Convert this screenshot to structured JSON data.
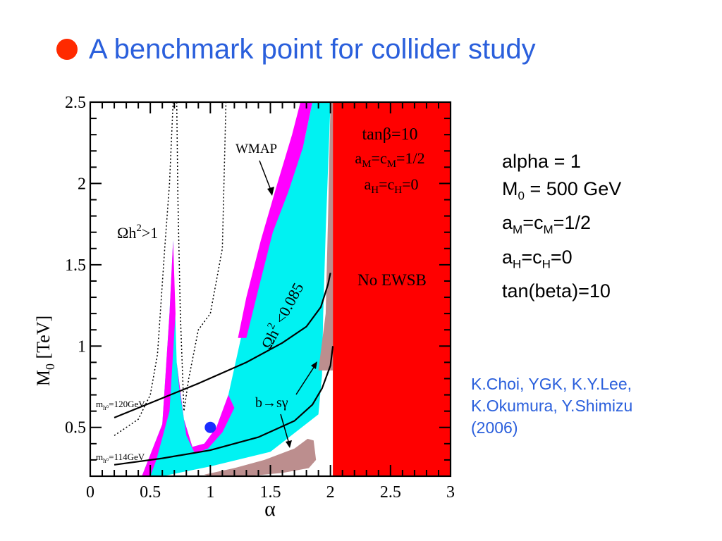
{
  "title": "A benchmark point for collider study",
  "colors": {
    "title": "#2a5fdc",
    "bullet": "#ff2a00",
    "cyan": "#00f2f2",
    "magenta": "#ff00ff",
    "red": "#ff0000",
    "brown": "#bc8e8e",
    "benchmark_point": "#1a2cff"
  },
  "params": {
    "line1": "alpha = 1",
    "line2_prefix": "M",
    "line2_sub": "0",
    "line2_rest": " = 500 GeV",
    "line3_a": "a",
    "line3_a_sub": "M",
    "line3_eq": "=c",
    "line3_c_sub": "M",
    "line3_rest": "=1/2",
    "line4_a": "a",
    "line4_a_sub": "H",
    "line4_eq": "=c",
    "line4_c_sub": "H",
    "line4_rest": "=0",
    "line5": "tan(beta)=10"
  },
  "reference": {
    "line1": "K.Choi, YGK, K.Y.Lee,",
    "line2": "K.Okumura, Y.Shimizu",
    "line3": "(2006)"
  },
  "chart_data": {
    "type": "scatter",
    "xlabel": "α",
    "ylabel": "M",
    "ylabel_sub": "0",
    "ylabel_rest": " [TeV]",
    "xlim": [
      0,
      3
    ],
    "ylim": [
      0.2,
      2.5
    ],
    "x_ticks": [
      0,
      0.5,
      1,
      1.5,
      2,
      2.5,
      3
    ],
    "x_tick_labels": [
      "0",
      "0.5",
      "1",
      "1.5",
      "2",
      "2.5",
      "3"
    ],
    "y_ticks": [
      0.5,
      1,
      1.5,
      2,
      2.5
    ],
    "y_tick_labels": [
      "0.5",
      "1",
      "1.5",
      "2",
      "2.5"
    ],
    "benchmark": {
      "x": 1,
      "y": 0.5
    },
    "annotations": {
      "tanb_a": "tanβ=10",
      "am_a": "a",
      "am_sub": "M",
      "am_eq": "=c",
      "cm_sub": "M",
      "am_rest": "=1/2",
      "ah_a": "a",
      "ah_sub": "H",
      "ah_eq": "=c",
      "ch_sub": "H",
      "ah_rest": "=0",
      "wmap": "WMAP",
      "omega_gt1": "Ωh",
      "omega_gt1_sup": "2",
      "omega_gt1_rest": ">1",
      "omega_lt": "Ωh",
      "omega_lt_sup": "2",
      "omega_lt_rest": " <0.085",
      "no_ewsb": "No EWSB",
      "bsg": "b→sγ",
      "mh120_a": "m",
      "mh120_sub": "h⁰",
      "mh120_rest": "=120GeV",
      "mh114_a": "m",
      "mh114_sub": "h⁰",
      "mh114_rest": "=114GeV"
    },
    "regions": {
      "no_ewsb": [
        [
          2.02,
          0.2
        ],
        [
          3,
          0.2
        ],
        [
          3,
          2.5
        ],
        [
          2.02,
          2.5
        ]
      ],
      "brown_band": [
        [
          1.9,
          0.85
        ],
        [
          1.96,
          1.2
        ],
        [
          1.98,
          1.8
        ],
        [
          2.0,
          2.5
        ],
        [
          2.02,
          2.5
        ],
        [
          2.02,
          0.85
        ]
      ],
      "brown_low": [
        [
          0.95,
          0.21
        ],
        [
          1.2,
          0.25
        ],
        [
          1.45,
          0.3
        ],
        [
          1.7,
          0.37
        ],
        [
          1.81,
          0.43
        ],
        [
          1.86,
          0.42
        ],
        [
          1.88,
          0.3
        ],
        [
          1.82,
          0.25
        ],
        [
          1.6,
          0.22
        ],
        [
          1.3,
          0.2
        ],
        [
          1.0,
          0.2
        ]
      ],
      "cyan": [
        [
          0.43,
          0.2
        ],
        [
          0.6,
          0.52
        ],
        [
          0.66,
          1.2
        ],
        [
          0.69,
          1.65
        ],
        [
          0.72,
          0.9
        ],
        [
          0.78,
          0.55
        ],
        [
          0.85,
          0.38
        ],
        [
          0.95,
          0.4
        ],
        [
          1.05,
          0.5
        ],
        [
          1.15,
          0.7
        ],
        [
          1.3,
          1.2
        ],
        [
          1.45,
          1.72
        ],
        [
          1.6,
          1.95
        ],
        [
          1.75,
          2.2
        ],
        [
          1.9,
          2.5
        ],
        [
          2.0,
          2.5
        ],
        [
          1.96,
          1.7
        ],
        [
          1.94,
          1.2
        ],
        [
          1.93,
          0.82
        ],
        [
          1.9,
          0.58
        ],
        [
          1.5,
          0.35
        ],
        [
          1.0,
          0.26
        ],
        [
          0.6,
          0.2
        ]
      ],
      "magenta_left": [
        [
          0.43,
          0.2
        ],
        [
          0.6,
          0.52
        ],
        [
          0.66,
          1.2
        ],
        [
          0.69,
          1.65
        ],
        [
          0.71,
          1.2
        ],
        [
          0.66,
          0.6
        ],
        [
          0.55,
          0.3
        ],
        [
          0.5,
          0.2
        ]
      ],
      "magenta_valley": [
        [
          0.72,
          0.9
        ],
        [
          0.78,
          0.55
        ],
        [
          0.85,
          0.38
        ],
        [
          0.95,
          0.4
        ],
        [
          1.05,
          0.5
        ],
        [
          1.15,
          0.7
        ],
        [
          1.2,
          0.62
        ],
        [
          1.1,
          0.47
        ],
        [
          0.98,
          0.37
        ],
        [
          0.87,
          0.34
        ],
        [
          0.8,
          0.45
        ],
        [
          0.74,
          0.75
        ]
      ],
      "magenta_upper": [
        [
          1.23,
          1.05
        ],
        [
          1.3,
          1.3
        ],
        [
          1.42,
          1.65
        ],
        [
          1.55,
          1.98
        ],
        [
          1.68,
          2.3
        ],
        [
          1.75,
          2.5
        ],
        [
          1.85,
          2.5
        ],
        [
          1.77,
          2.22
        ],
        [
          1.65,
          1.95
        ],
        [
          1.52,
          1.7
        ],
        [
          1.4,
          1.35
        ],
        [
          1.3,
          1.05
        ]
      ],
      "cyan_mid": [
        [
          1.2,
          0.62
        ],
        [
          1.3,
          1.05
        ],
        [
          1.4,
          1.35
        ],
        [
          1.52,
          1.7
        ],
        [
          1.65,
          1.95
        ],
        [
          1.77,
          2.22
        ],
        [
          1.85,
          2.5
        ],
        [
          1.97,
          2.5
        ],
        [
          1.93,
          1.5
        ],
        [
          1.9,
          0.9
        ],
        [
          1.5,
          0.5
        ]
      ]
    },
    "curves": {
      "mh120": [
        [
          0.2,
          0.56
        ],
        [
          0.5,
          0.65
        ],
        [
          0.9,
          0.77
        ],
        [
          1.3,
          0.9
        ],
        [
          1.6,
          1.02
        ],
        [
          1.8,
          1.12
        ],
        [
          1.92,
          1.24
        ],
        [
          1.98,
          1.38
        ],
        [
          2.0,
          1.45
        ]
      ],
      "mh114": [
        [
          0.2,
          0.27
        ],
        [
          0.6,
          0.31
        ],
        [
          1.0,
          0.36
        ],
        [
          1.4,
          0.44
        ],
        [
          1.7,
          0.54
        ],
        [
          1.85,
          0.64
        ],
        [
          1.93,
          0.74
        ],
        [
          1.97,
          0.82
        ],
        [
          2.0,
          0.88
        ],
        [
          2.02,
          1.0
        ]
      ],
      "dotted_left": [
        [
          0.2,
          0.45
        ],
        [
          0.4,
          0.55
        ],
        [
          0.5,
          0.7
        ],
        [
          0.56,
          0.95
        ],
        [
          0.62,
          1.6
        ],
        [
          0.66,
          2.0
        ],
        [
          0.69,
          2.5
        ]
      ],
      "dotted_mid": [
        [
          0.72,
          2.5
        ],
        [
          0.73,
          1.9
        ],
        [
          0.75,
          1.2
        ],
        [
          0.78,
          0.6
        ],
        [
          0.82,
          0.8
        ],
        [
          0.9,
          1.1
        ],
        [
          1.0,
          1.2
        ],
        [
          1.1,
          1.6
        ],
        [
          1.12,
          2.2
        ],
        [
          1.13,
          2.5
        ]
      ]
    }
  }
}
